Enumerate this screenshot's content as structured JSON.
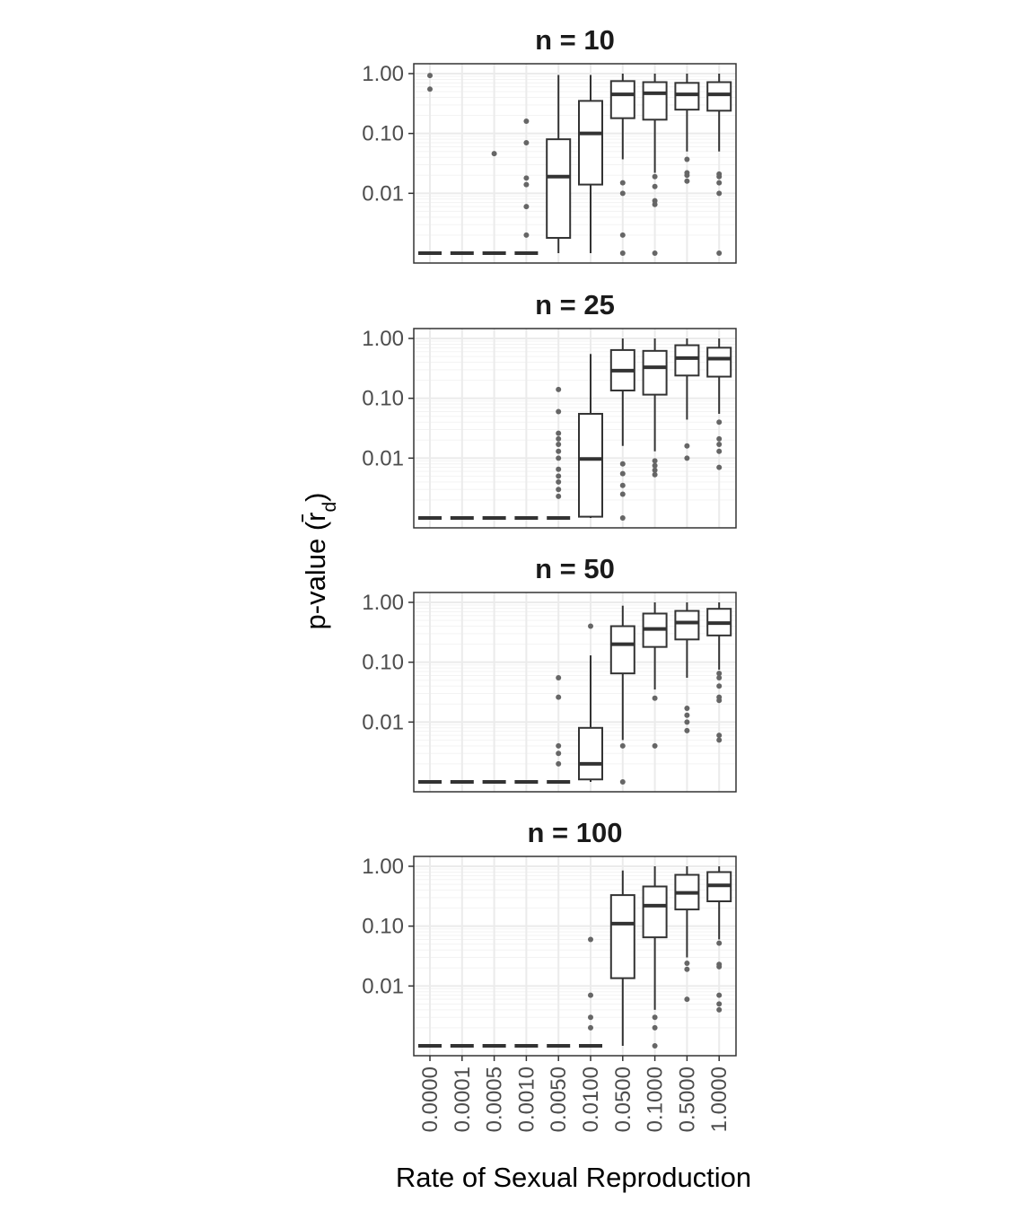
{
  "chart_data": {
    "type": "boxplot",
    "facet_label_prefix": "n = ",
    "xlabel": "Rate of Sexual Reproduction",
    "ylabel": "p-value (r̄d)",
    "ylabel_main": "p-value (r",
    "ylabel_bar": "̄",
    "ylabel_sub": "d",
    "ylabel_close": ")",
    "y_scale": "log10",
    "ylim": [
      0.001,
      1.0
    ],
    "y_ticks": [
      1.0,
      0.1,
      0.01
    ],
    "y_tick_labels": [
      "1.00",
      "0.10",
      "0.01"
    ],
    "categories": [
      "0.0000",
      "0.0001",
      "0.0005",
      "0.0010",
      "0.0050",
      "0.0100",
      "0.0500",
      "0.1000",
      "0.5000",
      "1.0000"
    ],
    "grid": true,
    "legend": "none",
    "colors": {
      "box": "#333333",
      "outlier": "#666666",
      "grid_major": "#ebebeb",
      "grid_minor": "#f3f3f3",
      "panel_border": "#333333"
    },
    "panels": [
      {
        "n": "10",
        "boxes": [
          {
            "category": "0.0000",
            "q1": 0.001,
            "median": 0.001,
            "q3": 0.001,
            "wmin": 0.001,
            "wmax": 0.001,
            "outliers": [
              0.55,
              0.93
            ]
          },
          {
            "category": "0.0001",
            "q1": 0.001,
            "median": 0.001,
            "q3": 0.001,
            "wmin": 0.001,
            "wmax": 0.001,
            "outliers": []
          },
          {
            "category": "0.0005",
            "q1": 0.001,
            "median": 0.001,
            "q3": 0.001,
            "wmin": 0.001,
            "wmax": 0.001,
            "outliers": [
              0.046
            ]
          },
          {
            "category": "0.0010",
            "q1": 0.001,
            "median": 0.001,
            "q3": 0.001,
            "wmin": 0.001,
            "wmax": 0.001,
            "outliers": [
              0.002,
              0.006,
              0.014,
              0.018,
              0.07,
              0.16
            ]
          },
          {
            "category": "0.0050",
            "q1": 0.0018,
            "median": 0.019,
            "q3": 0.08,
            "wmin": 0.001,
            "wmax": 0.95,
            "outliers": []
          },
          {
            "category": "0.0100",
            "q1": 0.014,
            "median": 0.1,
            "q3": 0.35,
            "wmin": 0.001,
            "wmax": 0.95,
            "outliers": []
          },
          {
            "category": "0.0500",
            "q1": 0.18,
            "median": 0.45,
            "q3": 0.75,
            "wmin": 0.037,
            "wmax": 1.0,
            "outliers": [
              0.015,
              0.01,
              0.002,
              0.001
            ]
          },
          {
            "category": "0.1000",
            "q1": 0.17,
            "median": 0.47,
            "q3": 0.72,
            "wmin": 0.022,
            "wmax": 1.0,
            "outliers": [
              0.019,
              0.013,
              0.0075,
              0.0065,
              0.001
            ]
          },
          {
            "category": "0.5000",
            "q1": 0.25,
            "median": 0.45,
            "q3": 0.7,
            "wmin": 0.05,
            "wmax": 1.0,
            "outliers": [
              0.037,
              0.022,
              0.02,
              0.016
            ]
          },
          {
            "category": "1.0000",
            "q1": 0.24,
            "median": 0.45,
            "q3": 0.72,
            "wmin": 0.05,
            "wmax": 1.0,
            "outliers": [
              0.021,
              0.019,
              0.015,
              0.01,
              0.001
            ]
          }
        ]
      },
      {
        "n": "25",
        "boxes": [
          {
            "category": "0.0000",
            "q1": 0.001,
            "median": 0.001,
            "q3": 0.001,
            "wmin": 0.001,
            "wmax": 0.001,
            "outliers": []
          },
          {
            "category": "0.0001",
            "q1": 0.001,
            "median": 0.001,
            "q3": 0.001,
            "wmin": 0.001,
            "wmax": 0.001,
            "outliers": []
          },
          {
            "category": "0.0005",
            "q1": 0.001,
            "median": 0.001,
            "q3": 0.001,
            "wmin": 0.001,
            "wmax": 0.001,
            "outliers": []
          },
          {
            "category": "0.0010",
            "q1": 0.001,
            "median": 0.001,
            "q3": 0.001,
            "wmin": 0.001,
            "wmax": 0.001,
            "outliers": []
          },
          {
            "category": "0.0050",
            "q1": 0.001,
            "median": 0.001,
            "q3": 0.001,
            "wmin": 0.001,
            "wmax": 0.001,
            "outliers": [
              0.14,
              0.06,
              0.026,
              0.021,
              0.017,
              0.013,
              0.01,
              0.0065,
              0.005,
              0.004,
              0.003,
              0.0023
            ]
          },
          {
            "category": "0.0100",
            "q1": 0.00105,
            "median": 0.0097,
            "q3": 0.055,
            "wmin": 0.001,
            "wmax": 0.55,
            "outliers": []
          },
          {
            "category": "0.0500",
            "q1": 0.135,
            "median": 0.29,
            "q3": 0.64,
            "wmin": 0.016,
            "wmax": 1.0,
            "outliers": [
              0.008,
              0.0055,
              0.0035,
              0.0025,
              0.001
            ]
          },
          {
            "category": "0.1000",
            "q1": 0.115,
            "median": 0.33,
            "q3": 0.62,
            "wmin": 0.013,
            "wmax": 1.0,
            "outliers": [
              0.009,
              0.0075,
              0.0063,
              0.0053
            ]
          },
          {
            "category": "0.5000",
            "q1": 0.24,
            "median": 0.47,
            "q3": 0.77,
            "wmin": 0.044,
            "wmax": 1.0,
            "outliers": [
              0.016,
              0.01
            ]
          },
          {
            "category": "1.0000",
            "q1": 0.23,
            "median": 0.46,
            "q3": 0.7,
            "wmin": 0.055,
            "wmax": 1.0,
            "outliers": [
              0.04,
              0.021,
              0.017,
              0.013,
              0.007
            ]
          }
        ]
      },
      {
        "n": "50",
        "boxes": [
          {
            "category": "0.0000",
            "q1": 0.001,
            "median": 0.001,
            "q3": 0.001,
            "wmin": 0.001,
            "wmax": 0.001,
            "outliers": []
          },
          {
            "category": "0.0001",
            "q1": 0.001,
            "median": 0.001,
            "q3": 0.001,
            "wmin": 0.001,
            "wmax": 0.001,
            "outliers": []
          },
          {
            "category": "0.0005",
            "q1": 0.001,
            "median": 0.001,
            "q3": 0.001,
            "wmin": 0.001,
            "wmax": 0.001,
            "outliers": []
          },
          {
            "category": "0.0010",
            "q1": 0.001,
            "median": 0.001,
            "q3": 0.001,
            "wmin": 0.001,
            "wmax": 0.001,
            "outliers": []
          },
          {
            "category": "0.0050",
            "q1": 0.001,
            "median": 0.001,
            "q3": 0.001,
            "wmin": 0.001,
            "wmax": 0.001,
            "outliers": [
              0.055,
              0.026,
              0.004,
              0.003,
              0.002
            ]
          },
          {
            "category": "0.0100",
            "q1": 0.0011,
            "median": 0.002,
            "q3": 0.008,
            "wmin": 0.001,
            "wmax": 0.13,
            "outliers": [
              0.4
            ]
          },
          {
            "category": "0.0500",
            "q1": 0.065,
            "median": 0.2,
            "q3": 0.4,
            "wmin": 0.005,
            "wmax": 0.88,
            "outliers": [
              0.004,
              0.001
            ]
          },
          {
            "category": "0.1000",
            "q1": 0.18,
            "median": 0.36,
            "q3": 0.65,
            "wmin": 0.035,
            "wmax": 1.0,
            "outliers": [
              0.025,
              0.004
            ]
          },
          {
            "category": "0.5000",
            "q1": 0.24,
            "median": 0.46,
            "q3": 0.72,
            "wmin": 0.055,
            "wmax": 1.0,
            "outliers": [
              0.017,
              0.013,
              0.01,
              0.0072
            ]
          },
          {
            "category": "1.0000",
            "q1": 0.28,
            "median": 0.45,
            "q3": 0.78,
            "wmin": 0.075,
            "wmax": 1.0,
            "outliers": [
              0.065,
              0.055,
              0.04,
              0.026,
              0.023,
              0.006,
              0.005
            ]
          }
        ]
      },
      {
        "n": "100",
        "boxes": [
          {
            "category": "0.0000",
            "q1": 0.001,
            "median": 0.001,
            "q3": 0.001,
            "wmin": 0.001,
            "wmax": 0.001,
            "outliers": []
          },
          {
            "category": "0.0001",
            "q1": 0.001,
            "median": 0.001,
            "q3": 0.001,
            "wmin": 0.001,
            "wmax": 0.001,
            "outliers": []
          },
          {
            "category": "0.0005",
            "q1": 0.001,
            "median": 0.001,
            "q3": 0.001,
            "wmin": 0.001,
            "wmax": 0.001,
            "outliers": []
          },
          {
            "category": "0.0010",
            "q1": 0.001,
            "median": 0.001,
            "q3": 0.001,
            "wmin": 0.001,
            "wmax": 0.001,
            "outliers": []
          },
          {
            "category": "0.0050",
            "q1": 0.001,
            "median": 0.001,
            "q3": 0.001,
            "wmin": 0.001,
            "wmax": 0.001,
            "outliers": []
          },
          {
            "category": "0.0100",
            "q1": 0.001,
            "median": 0.001,
            "q3": 0.001,
            "wmin": 0.001,
            "wmax": 0.001,
            "outliers": [
              0.06,
              0.007,
              0.003,
              0.002
            ]
          },
          {
            "category": "0.0500",
            "q1": 0.0135,
            "median": 0.11,
            "q3": 0.33,
            "wmin": 0.001,
            "wmax": 0.85,
            "outliers": []
          },
          {
            "category": "0.1000",
            "q1": 0.065,
            "median": 0.22,
            "q3": 0.46,
            "wmin": 0.004,
            "wmax": 1.0,
            "outliers": [
              0.003,
              0.002,
              0.001
            ]
          },
          {
            "category": "0.5000",
            "q1": 0.19,
            "median": 0.36,
            "q3": 0.72,
            "wmin": 0.03,
            "wmax": 1.0,
            "outliers": [
              0.024,
              0.019,
              0.006
            ]
          },
          {
            "category": "1.0000",
            "q1": 0.26,
            "median": 0.48,
            "q3": 0.8,
            "wmin": 0.06,
            "wmax": 1.0,
            "outliers": [
              0.052,
              0.023,
              0.021,
              0.007,
              0.005,
              0.004
            ]
          }
        ]
      }
    ]
  }
}
